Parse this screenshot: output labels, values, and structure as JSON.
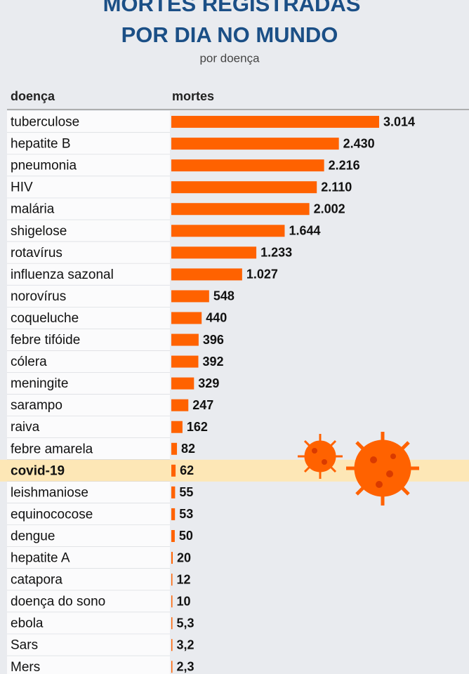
{
  "chart_data": {
    "type": "bar",
    "orientation": "horizontal",
    "title": "MORTES REGISTRADAS",
    "subtitle_title": "POR DIA NO MUNDO",
    "subtitle": "por doença",
    "category_header": "doença",
    "value_header": "mortes",
    "categories": [
      "tuberculose",
      "hepatite B",
      "pneumonia",
      "HIV",
      "malária",
      "shigelose",
      "rotavírus",
      "influenza sazonal",
      "norovírus",
      "coqueluche",
      "febre tifóide",
      "cólera",
      "meningite",
      "sarampo",
      "raiva",
      "febre amarela",
      "covid-19",
      "leishmaniose",
      "equinococose",
      "dengue",
      "hepatite A",
      "catapora",
      "doença do sono",
      "ebola",
      "Sars",
      "Mers"
    ],
    "values": [
      3014,
      2430,
      2216,
      2110,
      2002,
      1644,
      1233,
      1027,
      548,
      440,
      396,
      392,
      329,
      247,
      162,
      82,
      62,
      55,
      53,
      50,
      20,
      12,
      10,
      5.3,
      3.2,
      2.3
    ],
    "value_labels": [
      "3.014",
      "2.430",
      "2.216",
      "2.110",
      "2.002",
      "1.644",
      "1.233",
      "1.027",
      "548",
      "440",
      "396",
      "392",
      "329",
      "247",
      "162",
      "82",
      "62",
      "55",
      "53",
      "50",
      "20",
      "12",
      "10",
      "5,3",
      "3,2",
      "2,3"
    ],
    "color": "#ff6200",
    "highlight": "covid-19",
    "highlight_color": "#fde7b6"
  }
}
